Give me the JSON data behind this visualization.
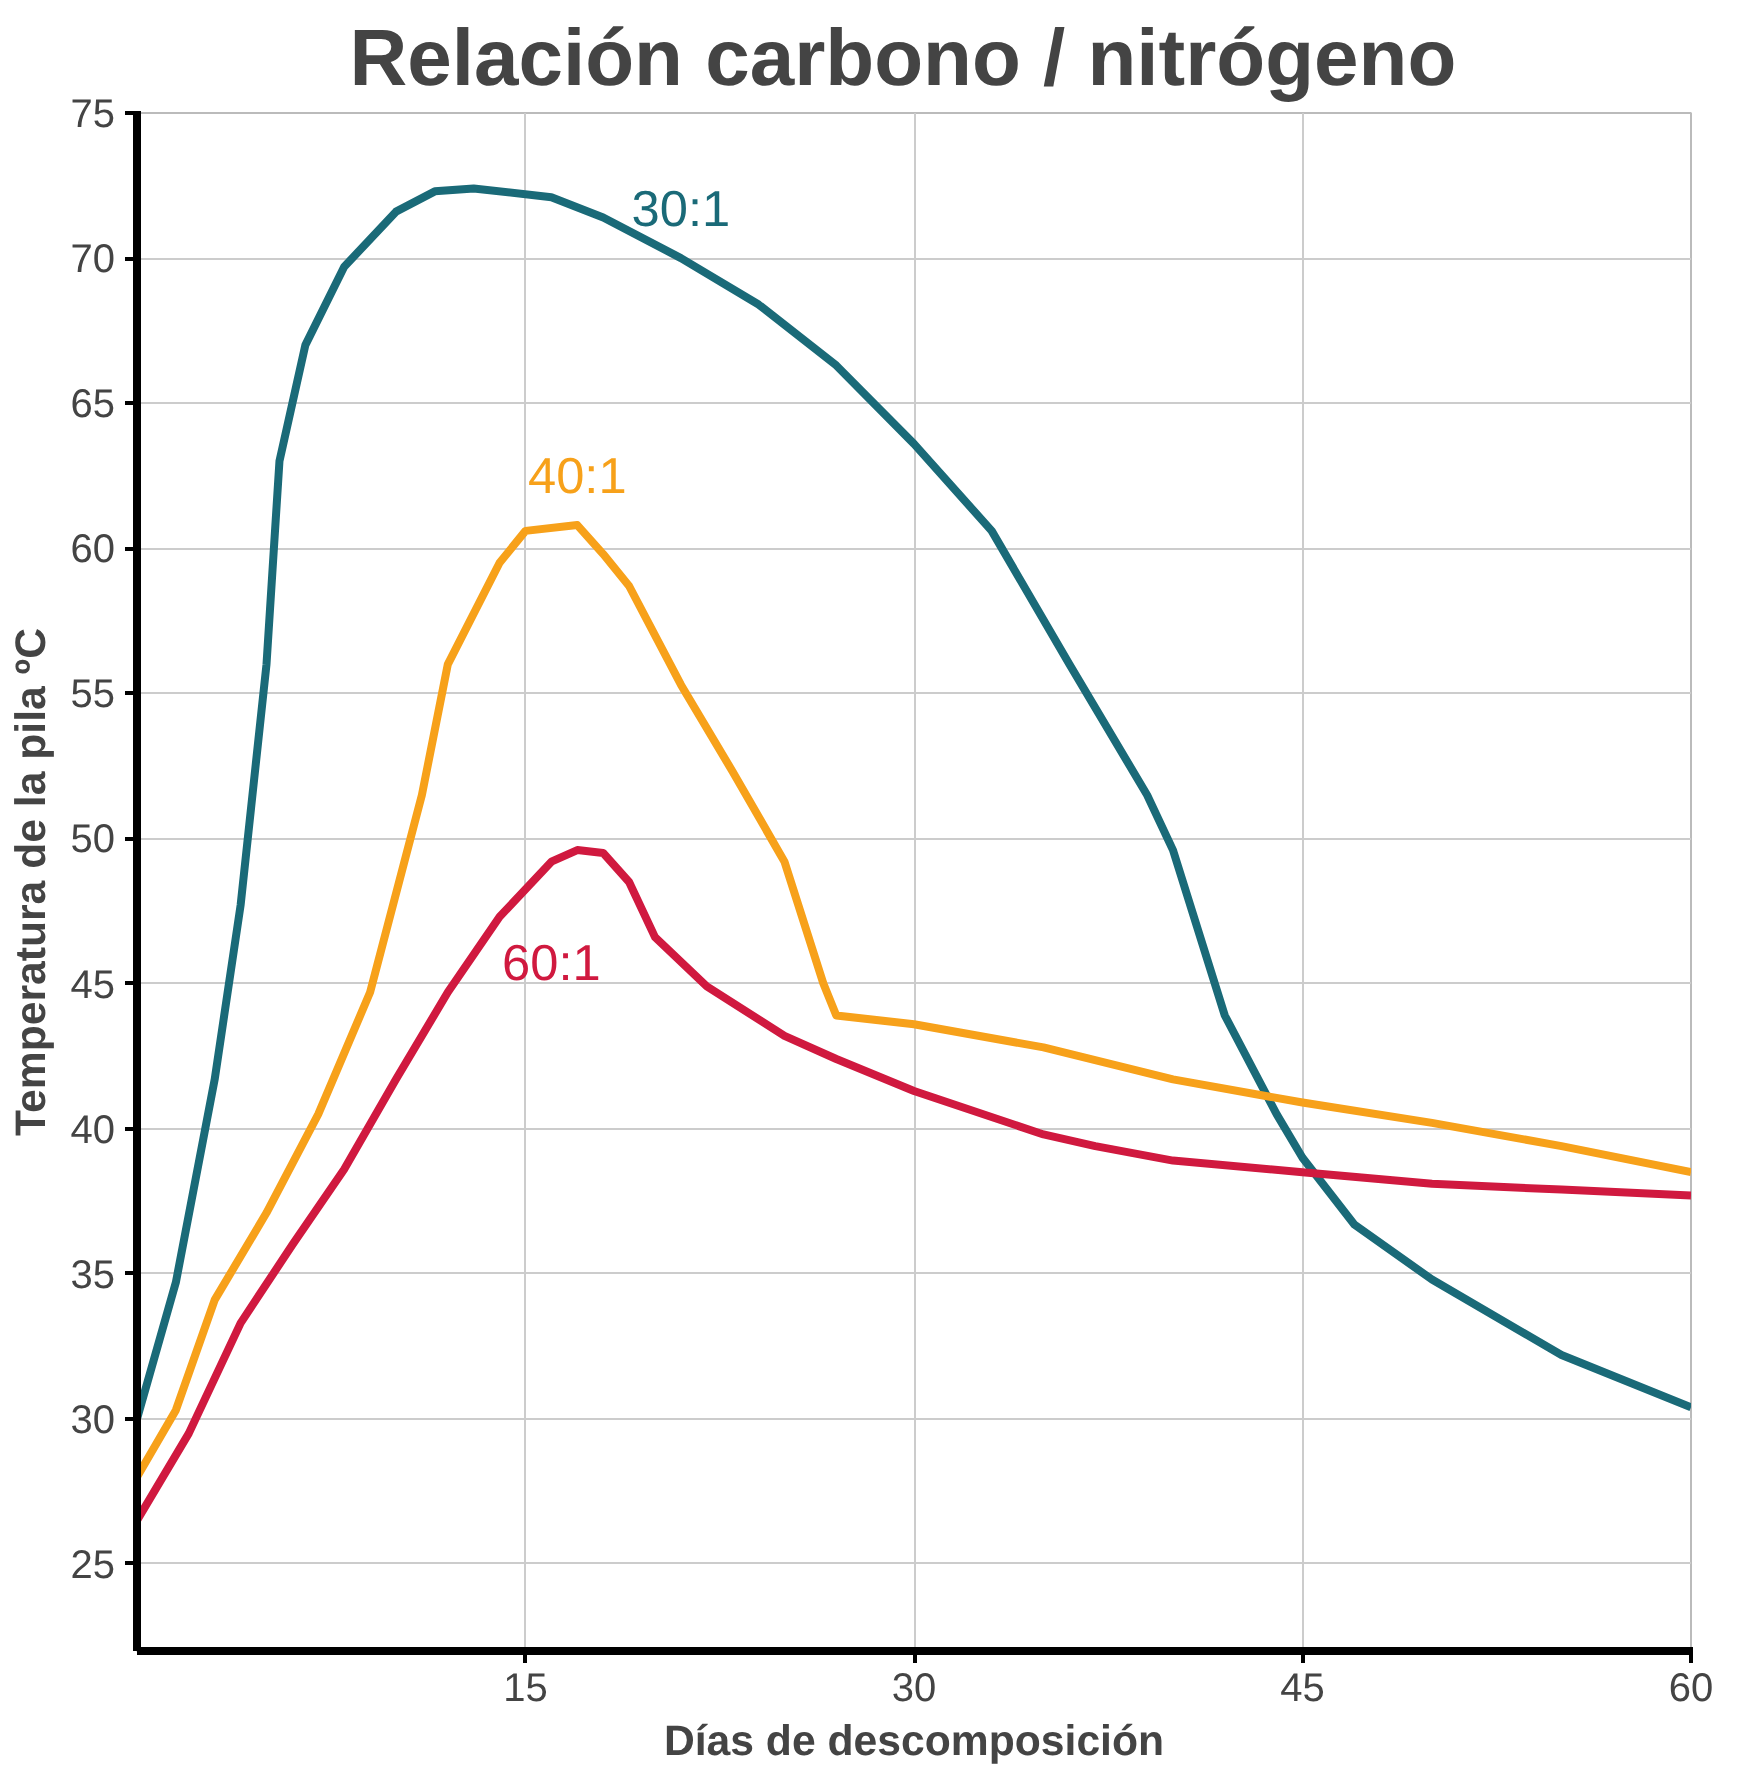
{
  "chart_data": {
    "type": "line",
    "title": "Relación  carbono / nitrógeno",
    "xlabel": "Días de descomposición",
    "ylabel": "Temperatura de la pila ºC",
    "xlim": [
      0,
      60
    ],
    "xticks": [
      15,
      30,
      45,
      60
    ],
    "ylim": [
      22,
      75
    ],
    "yticks": [
      25,
      30,
      35,
      40,
      45,
      50,
      55,
      60,
      65,
      70,
      75
    ],
    "grid": true,
    "legend": false,
    "marker": "none",
    "line_style": "solid",
    "series": [
      {
        "name": "30:1",
        "color": "#1a6a78",
        "x": [
          0,
          1.5,
          3,
          4,
          5,
          5.5,
          6.5,
          8,
          10,
          11.5,
          13,
          16,
          18,
          21,
          24,
          27,
          30,
          33,
          36,
          39,
          40,
          42,
          44,
          45,
          47,
          50,
          55,
          60
        ],
        "values": [
          30,
          34.7,
          41.7,
          47.7,
          56,
          63,
          67,
          69.7,
          71.6,
          72.3,
          72.4,
          72.1,
          71.4,
          70,
          68.4,
          66.3,
          63.6,
          60.6,
          56,
          51.5,
          49.6,
          43.9,
          40.5,
          39,
          36.7,
          34.8,
          32.2,
          30.4
        ]
      },
      {
        "name": "40:1",
        "color": "#f7a11a",
        "x": [
          0,
          1.5,
          3,
          5,
          7,
          9,
          11,
          12,
          14,
          15,
          17,
          18,
          19,
          21,
          23,
          25,
          26.5,
          27,
          30,
          35,
          40,
          45,
          50,
          55,
          60
        ],
        "values": [
          28,
          30.3,
          34.1,
          37.1,
          40.5,
          44.7,
          51.5,
          56,
          59.5,
          60.6,
          60.8,
          59.8,
          58.7,
          55.3,
          52.3,
          49.2,
          45,
          43.9,
          43.6,
          42.8,
          41.7,
          40.9,
          40.2,
          39.4,
          38.5
        ]
      },
      {
        "name": "60:1",
        "color": "#d0193f",
        "x": [
          0,
          2,
          4,
          6,
          8,
          10,
          12,
          14,
          16,
          17,
          18,
          19,
          20,
          22,
          25,
          27,
          30,
          35,
          37,
          40,
          45,
          50,
          55,
          60
        ],
        "values": [
          26.5,
          29.5,
          33.3,
          36,
          38.6,
          41.7,
          44.7,
          47.3,
          49.2,
          49.6,
          49.5,
          48.5,
          46.6,
          44.9,
          43.2,
          42.4,
          41.3,
          39.8,
          39.4,
          38.9,
          38.5,
          38.1,
          37.9,
          37.7
        ]
      }
    ]
  }
}
